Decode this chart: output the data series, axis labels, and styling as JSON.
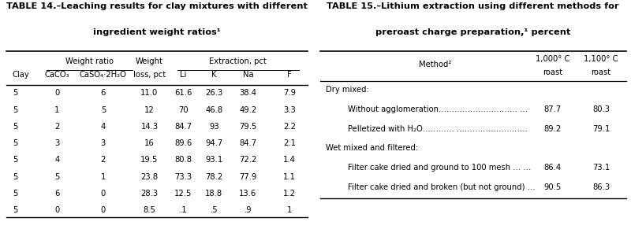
{
  "table1": {
    "title_line1": "TABLE 14.–Leaching results for clay mixtures with different",
    "title_line2": "ingredient weight ratios¹",
    "rows": [
      [
        "5",
        "0",
        "6",
        "11.0",
        "61.6",
        "26.3",
        "38.4",
        "7.9"
      ],
      [
        "5",
        "1",
        "5",
        "12",
        "70",
        "46.8",
        "49.2",
        "3.3"
      ],
      [
        "5",
        "2",
        "4",
        "14.3",
        "84.7",
        "93",
        "79.5",
        "2.2"
      ],
      [
        "5",
        "3",
        "3",
        "16",
        "89.6",
        "94.7",
        "84.7",
        "2.1"
      ],
      [
        "5",
        "4",
        "2",
        "19.5",
        "80.8",
        "93.1",
        "72.2",
        "1.4"
      ],
      [
        "5",
        "5",
        "1",
        "23.8",
        "73.3",
        "78.2",
        "77.9",
        "1.1"
      ],
      [
        "5",
        "6",
        "0",
        "28.3",
        "12.5",
        "18.8",
        "13.6",
        "1.2"
      ],
      [
        "5",
        "0",
        "0",
        "8.5",
        ".1",
        ".5",
        ".9",
        "1"
      ]
    ]
  },
  "table2": {
    "title_line1": "TABLE 15.–Lithium extraction using different methods for",
    "title_line2": "preroast charge preparation,¹ percent",
    "rows": [
      {
        "indent": 0,
        "text": "Dry mixed:",
        "val1": "",
        "val2": ""
      },
      {
        "indent": 1,
        "text": "Without agglomeration………………………… …",
        "val1": "87.7",
        "val2": "80.3"
      },
      {
        "indent": 1,
        "text": "Pelletized with H₂O………… ………………………",
        "val1": "89.2",
        "val2": "79.1"
      },
      {
        "indent": 0,
        "text": "Wet mixed and filtered:",
        "val1": "",
        "val2": ""
      },
      {
        "indent": 1,
        "text": "Filter cake dried and ground to 100 mesh … …",
        "val1": "86.4",
        "val2": "73.1"
      },
      {
        "indent": 1,
        "text": "Filter cake dried and broken (but not ground) …",
        "val1": "90.5",
        "val2": "86.3"
      }
    ]
  },
  "bg_color": "#ffffff",
  "text_color": "#000000",
  "font_size": 7.2,
  "title_font_size": 8.2
}
